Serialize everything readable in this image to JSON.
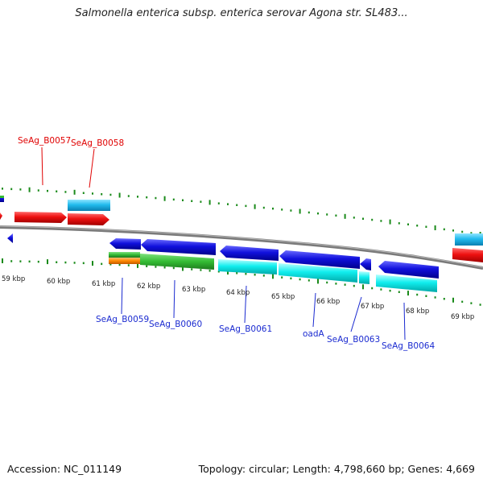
{
  "title": "Salmonella enterica subsp. enterica serovar Agona str. SL483...",
  "footer": {
    "accession": "Accession: NC_011149",
    "summary": "Topology: circular; Length: 4,798,660 bp; Genes: 4,669"
  },
  "scale_labels": [
    "59 kbp",
    "60 kbp",
    "61 kbp",
    "62 kbp",
    "63 kbp",
    "64 kbp",
    "65 kbp",
    "66 kbp",
    "67 kbp",
    "68 kbp",
    "69 kbp"
  ],
  "genes_top": [
    {
      "name": "SeAg_B0057",
      "color": "#e00000"
    },
    {
      "name": "SeAg_B0058",
      "color": "#e00000"
    }
  ],
  "genes_bottom": [
    {
      "name": "SeAg_B0059",
      "color": "#1a2ad0"
    },
    {
      "name": "SeAg_B0060",
      "color": "#1a2ad0"
    },
    {
      "name": "SeAg_B0061",
      "color": "#1a2ad0"
    },
    {
      "name": "oadA",
      "color": "#1a2ad0"
    },
    {
      "name": "SeAg_B0063",
      "color": "#1a2ad0"
    },
    {
      "name": "SeAg_B0064",
      "color": "#1a2ad0"
    }
  ],
  "colors": {
    "forward_cds": "#ee1111",
    "forward_feature": "#22bbee",
    "reverse_cds": "#1111dd",
    "reverse_feature": "#11eeee",
    "gc_green": "#33bb33",
    "gc_orange": "#ff8800",
    "backbone": "#888888",
    "tick": "#1a8a1a"
  }
}
